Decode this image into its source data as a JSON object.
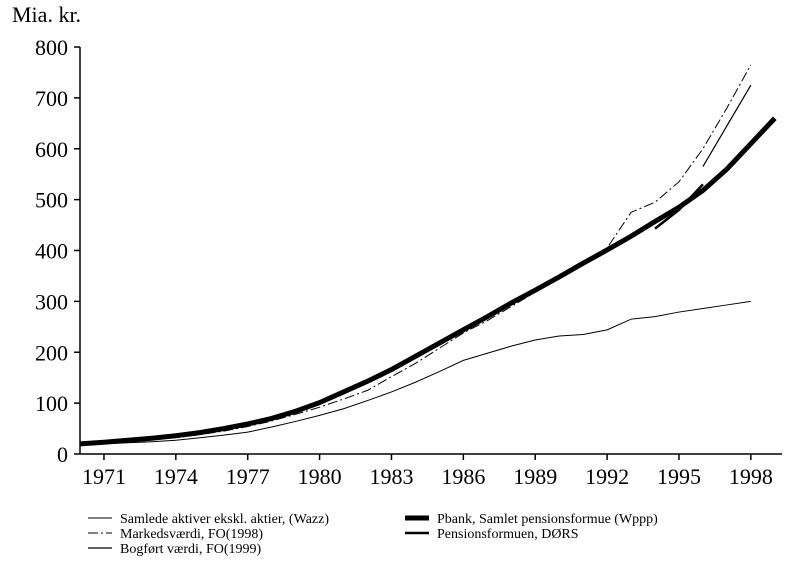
{
  "chart_data": {
    "type": "line",
    "y_label": "Mia. kr.",
    "x": [
      1970,
      1971,
      1972,
      1973,
      1974,
      1975,
      1976,
      1977,
      1978,
      1979,
      1980,
      1981,
      1982,
      1983,
      1984,
      1985,
      1986,
      1987,
      1988,
      1989,
      1990,
      1991,
      1992,
      1993,
      1994,
      1995,
      1996,
      1997,
      1998,
      1999
    ],
    "xlim": [
      1970,
      1999.3
    ],
    "xticks": [
      1971,
      1974,
      1977,
      1980,
      1983,
      1986,
      1989,
      1992,
      1995,
      1998
    ],
    "ylim": [
      0,
      800
    ],
    "yticks": [
      0,
      100,
      200,
      300,
      400,
      500,
      600,
      700,
      800
    ],
    "series": [
      {
        "name": "Samlede aktiver ekskl. aktier, (Wazz)",
        "color": "#000000",
        "width": 1,
        "dash": "none",
        "values": [
          18,
          20,
          22,
          24,
          27,
          32,
          37,
          43,
          53,
          64,
          76,
          89,
          105,
          122,
          141,
          162,
          184,
          198,
          212,
          224,
          232,
          235,
          244,
          265,
          270,
          279,
          286,
          293,
          300,
          null
        ]
      },
      {
        "name": "Markedsværdi, FO(1998)",
        "color": "#000000",
        "width": 1,
        "dash": "10 3 2 3",
        "values": [
          null,
          null,
          null,
          28,
          32,
          38,
          45,
          54,
          65,
          78,
          92,
          108,
          125,
          152,
          178,
          208,
          238,
          262,
          290,
          318,
          345,
          375,
          405,
          475,
          495,
          535,
          600,
          680,
          765,
          null
        ]
      },
      {
        "name": "Bogført værdi, FO(1999)",
        "color": "#000000",
        "width": 1.2,
        "dash": "none",
        "values": [
          null,
          null,
          null,
          null,
          null,
          null,
          null,
          null,
          null,
          null,
          null,
          null,
          null,
          null,
          null,
          null,
          null,
          null,
          null,
          null,
          null,
          null,
          null,
          null,
          null,
          null,
          565,
          645,
          725,
          null
        ]
      },
      {
        "name": "Pbank, Samlet pensionsformue (Wppp)",
        "color": "#000000",
        "width": 5,
        "dash": "none",
        "values": [
          20,
          23,
          27,
          31,
          36,
          42,
          50,
          59,
          70,
          84,
          101,
          122,
          143,
          166,
          192,
          218,
          244,
          270,
          297,
          322,
          348,
          375,
          401,
          428,
          457,
          485,
          518,
          560,
          610,
          660
        ]
      },
      {
        "name": "Pensionsformuen, DØRS",
        "color": "#000000",
        "width": 2.5,
        "dash": "none",
        "values": [
          null,
          null,
          null,
          null,
          null,
          null,
          null,
          null,
          null,
          null,
          null,
          null,
          null,
          null,
          null,
          null,
          null,
          null,
          null,
          null,
          null,
          null,
          null,
          null,
          443,
          480,
          530,
          null,
          null,
          null
        ]
      }
    ]
  }
}
